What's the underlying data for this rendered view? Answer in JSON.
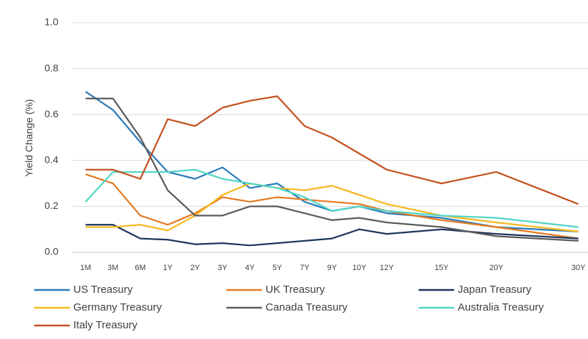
{
  "chart_data": {
    "type": "line",
    "y_label": "Yield Change (%)",
    "x": [
      0,
      1,
      2,
      3,
      4,
      5,
      6,
      7,
      8,
      9,
      10,
      11,
      13,
      15,
      18
    ],
    "xlim": [
      -0.5,
      18.35
    ],
    "xticks": [
      {
        "value": 0,
        "label": "1M"
      },
      {
        "value": 1,
        "label": "3M"
      },
      {
        "value": 2,
        "label": "6M"
      },
      {
        "value": 3,
        "label": "1Y"
      },
      {
        "value": 4,
        "label": "2Y"
      },
      {
        "value": 5,
        "label": "3Y"
      },
      {
        "value": 6,
        "label": "4Y"
      },
      {
        "value": 7,
        "label": "5Y"
      },
      {
        "value": 8,
        "label": "7Y"
      },
      {
        "value": 9,
        "label": "9Y"
      },
      {
        "value": 10,
        "label": "10Y"
      },
      {
        "value": 11,
        "label": "12Y"
      },
      {
        "value": 13,
        "label": "15Y"
      },
      {
        "value": 15,
        "label": "20Y"
      },
      {
        "value": 18,
        "label": "30Y"
      }
    ],
    "ylim": [
      0,
      1
    ],
    "yticks": [
      {
        "value": 0,
        "label": "0.0"
      },
      0.2,
      0.4,
      0.6,
      0.8,
      {
        "value": 1,
        "label": "1.0"
      }
    ],
    "grid": true,
    "series": [
      {
        "name": "US Treasury",
        "color": "#2a7ab9",
        "values": [
          0.7,
          0.62,
          0.48,
          0.35,
          0.32,
          0.37,
          0.28,
          0.3,
          0.22,
          0.18,
          0.2,
          0.17,
          0.15,
          0.11,
          0.09
        ]
      },
      {
        "name": "UK Treasury",
        "color": "#e57a22",
        "values": [
          0.34,
          0.3,
          0.16,
          0.12,
          0.17,
          0.24,
          0.22,
          0.24,
          0.23,
          0.22,
          0.21,
          0.18,
          0.14,
          0.11,
          0.06
        ]
      },
      {
        "name": "Japan Treasury",
        "color": "#1c355e",
        "values": [
          0.12,
          0.12,
          0.06,
          0.055,
          0.035,
          0.04,
          0.03,
          0.04,
          0.05,
          0.06,
          0.1,
          0.08,
          0.1,
          0.08,
          0.06
        ]
      },
      {
        "name": "Germany Treasury",
        "color": "#f7b81f",
        "values": [
          0.11,
          0.11,
          0.12,
          0.095,
          0.16,
          0.25,
          0.3,
          0.28,
          0.27,
          0.29,
          0.25,
          0.21,
          0.16,
          0.13,
          0.09
        ]
      },
      {
        "name": "Canada Treasury",
        "color": "#5a5a5a",
        "values": [
          0.67,
          0.67,
          0.5,
          0.27,
          0.16,
          0.16,
          0.2,
          0.2,
          0.17,
          0.14,
          0.15,
          0.13,
          0.11,
          0.07,
          0.05
        ]
      },
      {
        "name": "Australia Treasury",
        "color": "#52d5c6",
        "values": [
          0.22,
          0.35,
          0.35,
          0.35,
          0.36,
          0.32,
          0.3,
          0.28,
          0.24,
          0.18,
          0.2,
          0.18,
          0.16,
          0.15,
          0.11
        ]
      },
      {
        "name": "Italy Treasury",
        "color": "#c4511f",
        "values": [
          0.36,
          0.36,
          0.32,
          0.58,
          0.55,
          0.63,
          0.66,
          0.68,
          0.55,
          0.5,
          0.43,
          0.36,
          0.3,
          0.35,
          0.21
        ]
      }
    ]
  }
}
